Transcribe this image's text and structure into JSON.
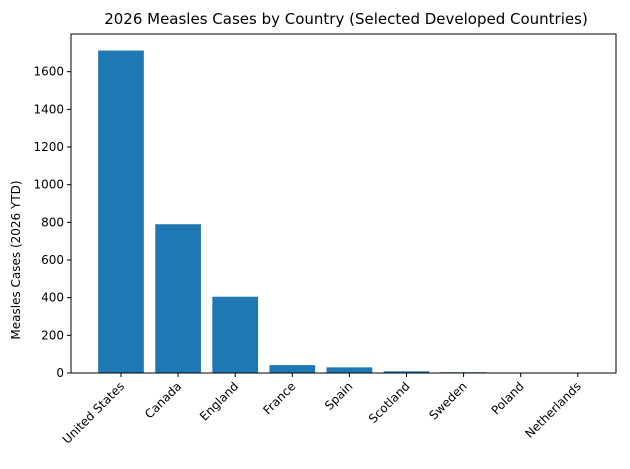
{
  "chart_data": {
    "type": "bar",
    "title": "2026 Measles Cases by Country (Selected Developed Countries)",
    "xlabel": "",
    "ylabel": "Measles Cases (2026 YTD)",
    "categories": [
      "United States",
      "Canada",
      "England",
      "France",
      "Spain",
      "Scotland",
      "Sweden",
      "Poland",
      "Netherlands"
    ],
    "values": [
      1712,
      790,
      405,
      42,
      30,
      9,
      4,
      1,
      1
    ],
    "ylim": [
      0,
      1800
    ],
    "yticks": [
      0,
      200,
      400,
      600,
      800,
      1000,
      1200,
      1400,
      1600
    ],
    "bar_color": "#1f77b4",
    "grid": false
  }
}
